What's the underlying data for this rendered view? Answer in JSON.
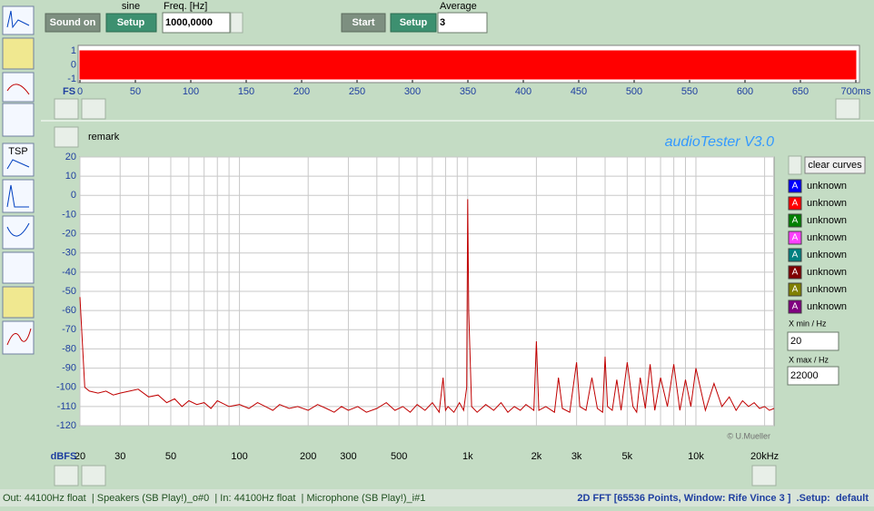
{
  "toolbar": {
    "sound_on": "Sound on",
    "signal_label": "sine",
    "setup_out": "Setup",
    "freq_label": "Freq. [Hz]",
    "freq_value": "1000,0000",
    "start": "Start",
    "setup_in": "Setup",
    "average_label": "Average",
    "average_value": "3"
  },
  "side_icons": {
    "tsp": "TSP"
  },
  "remark": "remark",
  "app_title": "audioTester  V3.0",
  "chart_data": [
    {
      "type": "area",
      "axis_label": "FS",
      "xlim": [
        0,
        700
      ],
      "xticks": [
        0,
        50,
        100,
        150,
        200,
        250,
        300,
        350,
        400,
        450,
        500,
        550,
        600,
        650,
        {
          "value": 700,
          "label": "700ms"
        }
      ],
      "ylim": [
        -1,
        1
      ],
      "yticks": [
        1,
        0,
        -1
      ],
      "x": [
        0,
        700
      ],
      "upper": [
        1,
        1
      ],
      "lower": [
        -1,
        -1
      ],
      "color": "#ff0000"
    },
    {
      "type": "line",
      "y_axis_label": "dBFS",
      "credit": "© U.Mueller",
      "xscale": "log",
      "xlim": [
        20,
        22000
      ],
      "xticks": [
        20,
        30,
        50,
        100,
        200,
        300,
        500,
        {
          "value": 1000,
          "label": "1k"
        },
        {
          "value": 2000,
          "label": "2k"
        },
        {
          "value": 3000,
          "label": "3k"
        },
        {
          "value": 5000,
          "label": "5k"
        },
        {
          "value": 10000,
          "label": "10k"
        },
        {
          "value": 20000,
          "label": "20kHz"
        }
      ],
      "x_minor_ticks": [
        40,
        60,
        70,
        80,
        90,
        400,
        600,
        700,
        800,
        900,
        4000,
        6000,
        7000,
        8000,
        9000
      ],
      "ylim": [
        -120,
        20
      ],
      "yticks": [
        20,
        10,
        0,
        -10,
        -20,
        -30,
        -40,
        -50,
        -60,
        -70,
        -80,
        -90,
        -100,
        -110,
        -120
      ],
      "grid": true,
      "x": [
        20,
        21,
        22,
        24,
        26,
        28,
        30,
        33,
        36,
        40,
        44,
        48,
        52,
        56,
        60,
        65,
        70,
        75,
        80,
        90,
        100,
        110,
        120,
        130,
        140,
        150,
        165,
        180,
        200,
        220,
        240,
        260,
        280,
        300,
        330,
        360,
        400,
        440,
        480,
        520,
        560,
        600,
        650,
        700,
        750,
        780,
        800,
        820,
        870,
        920,
        960,
        990,
        1000,
        1010,
        1040,
        1100,
        1200,
        1300,
        1400,
        1500,
        1600,
        1700,
        1800,
        1900,
        1950,
        2000,
        2050,
        2200,
        2400,
        2500,
        2600,
        2800,
        3000,
        3100,
        3300,
        3500,
        3700,
        3900,
        4000,
        4100,
        4300,
        4500,
        4700,
        5000,
        5300,
        5500,
        5700,
        6000,
        6300,
        6600,
        7000,
        7500,
        8000,
        8500,
        9000,
        9500,
        10000,
        11000,
        12000,
        13000,
        14000,
        15000,
        16000,
        17000,
        18000,
        19000,
        20000,
        21000,
        22000
      ],
      "series": [
        {
          "color": "#c00000",
          "values": [
            -53,
            -100,
            -102,
            -103,
            -102,
            -104,
            -103,
            -102,
            -101,
            -105,
            -104,
            -108,
            -106,
            -110,
            -107,
            -109,
            -108,
            -111,
            -107,
            -110,
            -109,
            -111,
            -108,
            -110,
            -112,
            -109,
            -111,
            -110,
            -112,
            -109,
            -111,
            -113,
            -110,
            -112,
            -110,
            -113,
            -111,
            -108,
            -112,
            -110,
            -113,
            -109,
            -112,
            -108,
            -113,
            -95,
            -112,
            -110,
            -113,
            -108,
            -112,
            -100,
            -2,
            -60,
            -110,
            -113,
            -109,
            -112,
            -108,
            -113,
            -110,
            -112,
            -109,
            -111,
            -112,
            -76,
            -112,
            -110,
            -113,
            -95,
            -111,
            -113,
            -87,
            -110,
            -112,
            -95,
            -111,
            -113,
            -84,
            -110,
            -112,
            -96,
            -112,
            -87,
            -110,
            -113,
            -95,
            -111,
            -88,
            -112,
            -95,
            -110,
            -88,
            -112,
            -96,
            -110,
            -90,
            -112,
            -98,
            -110,
            -105,
            -112,
            -107,
            -110,
            -108,
            -111,
            -110,
            -112,
            -111
          ]
        }
      ]
    }
  ],
  "curves_panel": {
    "clear": "clear curves",
    "icon_letter": "A",
    "curves": [
      {
        "label": "unknown",
        "color": "#0000ff"
      },
      {
        "label": "unknown",
        "color": "#ff0000"
      },
      {
        "label": "unknown",
        "color": "#008000"
      },
      {
        "label": "unknown",
        "color": "#ff40ff"
      },
      {
        "label": "unknown",
        "color": "#008080"
      },
      {
        "label": "unknown",
        "color": "#800000"
      },
      {
        "label": "unknown",
        "color": "#808000"
      },
      {
        "label": "unknown",
        "color": "#800080"
      }
    ],
    "xmin_label": "X min / Hz",
    "xmin": "20",
    "xmax_label": "X max / Hz",
    "xmax": "22000"
  },
  "status_bar": {
    "left": "Out: 44100Hz float  | Speakers (SB Play!)_o#0  | In: 44100Hz float  | Microphone (SB Play!)_i#1",
    "right": "2D FFT [65536 Points, Window: Rife Vince 3 ]  .Setup:  default"
  }
}
